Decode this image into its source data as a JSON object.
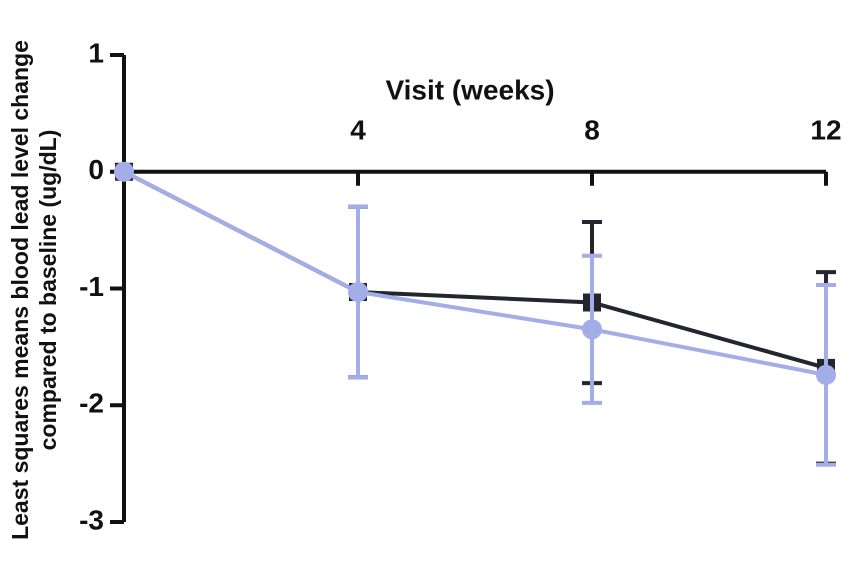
{
  "chart_data": {
    "type": "line",
    "ylabel": [
      "Least squares means  blood lead level change",
      "compared to baseline (ug/dL)"
    ],
    "xlabel": "Visit (weeks)",
    "x": [
      0,
      4,
      8,
      12
    ],
    "series": [
      {
        "color": "#23262e",
        "marker": "square",
        "values": [
          0,
          -1.03,
          -1.12,
          -1.68
        ],
        "errors": [
          0,
          0.73,
          0.69,
          0.82
        ]
      },
      {
        "color": "#a3aee8",
        "marker": "circle",
        "values": [
          0,
          -1.03,
          -1.35,
          -1.74
        ],
        "errors": [
          0,
          0.73,
          0.63,
          0.77
        ]
      }
    ],
    "xlim": [
      0,
      12
    ],
    "xticks": [
      4,
      8,
      12
    ],
    "ylim": [
      -3,
      1
    ],
    "yticks": [
      -3,
      -2,
      -1,
      0,
      1
    ]
  }
}
